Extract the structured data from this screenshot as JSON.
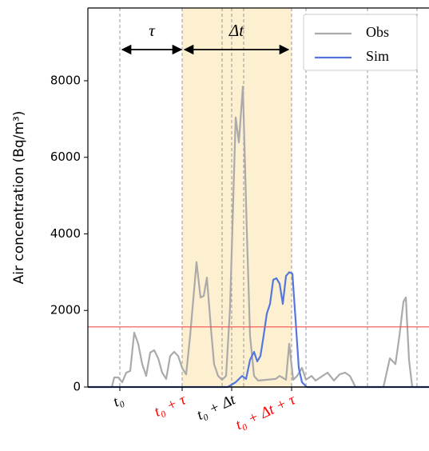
{
  "chart_data": {
    "type": "line",
    "ylabel": "Air concentration (Bq/m³)",
    "xlim": [
      0,
      427
    ],
    "ylim": [
      0,
      9900
    ],
    "yticks": [
      0,
      2000,
      4000,
      6000,
      8000
    ],
    "xticks": [
      {
        "value": 40,
        "label": "t₀"
      },
      {
        "value": 118,
        "label": "t₀ + τ"
      },
      {
        "value": 180,
        "label": "t₀ + Δt"
      },
      {
        "value": 255,
        "label": "t₀ + Δt + τ"
      }
    ],
    "xtick_colors": [
      "#000000",
      "#ff0000",
      "#000000",
      "#ff0000"
    ],
    "shaded_span": [
      118,
      255
    ],
    "shade_color": "#fdf0d0",
    "vlines": [
      40,
      118,
      168,
      180,
      195,
      255,
      273,
      350,
      412
    ],
    "threshold": 1570,
    "threshold_color": "#f05050",
    "annotations": [
      {
        "text": "τ",
        "x": [
          40,
          118
        ]
      },
      {
        "text": "Δt",
        "x": [
          118,
          252
        ]
      }
    ],
    "legend": "upper right",
    "series": [
      {
        "name": "Obs",
        "color": "#aaaaaa",
        "x": [
          0,
          30,
          33,
          38,
          43,
          48,
          53,
          58,
          63,
          68,
          73,
          78,
          83,
          88,
          93,
          98,
          103,
          108,
          113,
          118,
          123,
          128,
          136,
          141,
          145,
          149,
          154,
          158,
          163,
          168,
          173,
          178,
          185,
          189,
          194,
          199,
          203,
          208,
          213,
          235,
          240,
          248,
          252,
          257,
          262,
          268,
          273,
          280,
          285,
          300,
          308,
          315,
          322,
          328,
          335,
          370,
          378,
          385,
          390,
          395,
          398,
          402,
          406,
          427
        ],
        "values": [
          0,
          0,
          250,
          250,
          125,
          375,
          420,
          1420,
          1130,
          600,
          290,
          900,
          960,
          750,
          375,
          210,
          810,
          920,
          810,
          500,
          330,
          1340,
          3260,
          2340,
          2380,
          2860,
          1540,
          600,
          290,
          190,
          290,
          2090,
          7040,
          6390,
          7850,
          4050,
          1340,
          290,
          170,
          210,
          290,
          190,
          1130,
          190,
          290,
          500,
          190,
          290,
          170,
          375,
          170,
          330,
          375,
          290,
          0,
          0,
          750,
          600,
          1340,
          2230,
          2340,
          710,
          0,
          0
        ]
      },
      {
        "name": "Sim",
        "color": "#5577dd",
        "x": [
          0,
          175,
          185,
          193,
          198,
          203,
          208,
          212,
          216,
          220,
          224,
          228,
          232,
          236,
          240,
          244,
          248,
          252,
          256,
          260,
          264,
          268,
          274,
          427
        ],
        "values": [
          0,
          0,
          125,
          290,
          210,
          710,
          920,
          670,
          810,
          1340,
          1920,
          2170,
          2800,
          2840,
          2700,
          2170,
          2900,
          3000,
          2960,
          1750,
          500,
          125,
          0,
          0
        ]
      }
    ]
  }
}
